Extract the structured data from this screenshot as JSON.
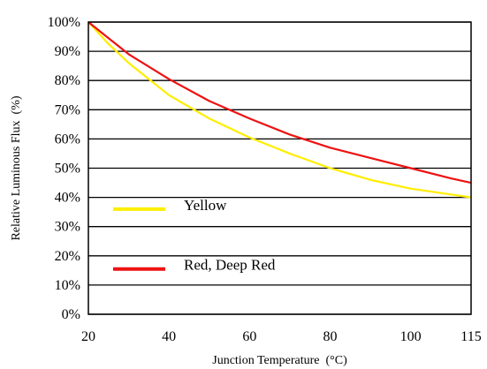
{
  "chart_data": {
    "type": "line",
    "title": "",
    "xlabel": "Junction Temperature  (°C)",
    "ylabel": "Relative Luminous Flux  (%)",
    "xlim": [
      20,
      115
    ],
    "ylim": [
      0,
      100
    ],
    "x_ticks": [
      20,
      40,
      60,
      80,
      100,
      115
    ],
    "y_ticks": [
      0,
      10,
      20,
      30,
      40,
      50,
      60,
      70,
      80,
      90,
      100
    ],
    "y_tick_suffix": "%",
    "grid": "horizontal",
    "legend_placement": "left, inside plot",
    "series": [
      {
        "name": "Yellow",
        "color": "#ffee00",
        "x": [
          20,
          25,
          30,
          40,
          50,
          60,
          70,
          80,
          90,
          100,
          110,
          115
        ],
        "y": [
          100,
          92.5,
          86,
          75,
          67,
          60.5,
          55,
          50,
          46,
          43,
          41,
          40
        ]
      },
      {
        "name": "Red, Deep Red",
        "color": "#ee1111",
        "x": [
          20,
          25,
          30,
          40,
          50,
          60,
          70,
          80,
          90,
          100,
          110,
          115
        ],
        "y": [
          100,
          94.5,
          89,
          80.5,
          73,
          67,
          61.5,
          57,
          53.5,
          50,
          46.5,
          45
        ]
      }
    ]
  }
}
